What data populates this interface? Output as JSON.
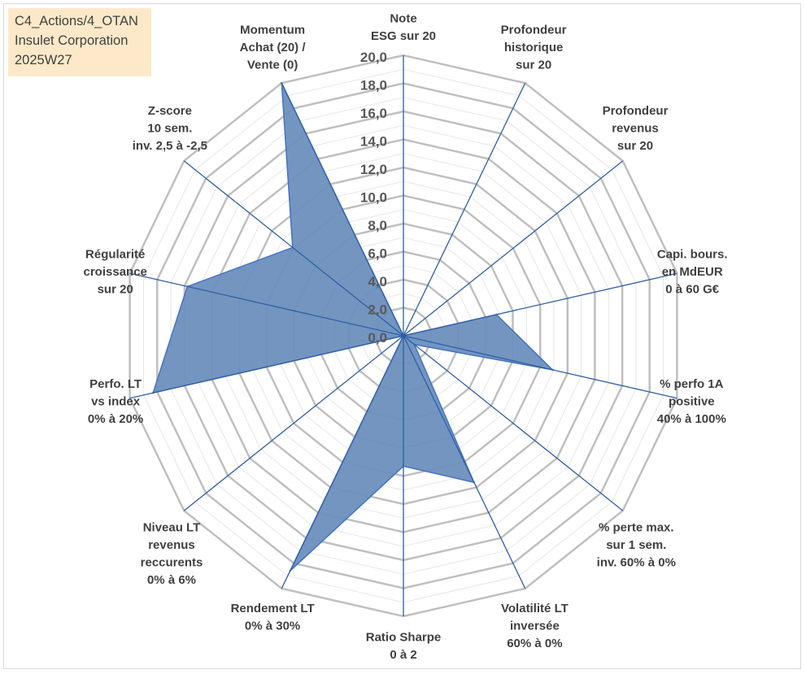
{
  "title_box": {
    "line1": "C4_Actions/4_OTAN",
    "line2": "Insulet Corporation",
    "line3": "2025W27"
  },
  "colors": {
    "grid_major": "#bfbfbf",
    "grid_minor": "#e6e6e6",
    "spoke": "#2f5fa5",
    "fill": "#6b8fbd",
    "stroke": "#4472c4",
    "title_bg": "#fde9c9"
  },
  "chart_data": {
    "type": "radar",
    "title": "",
    "rmin": 0,
    "rmax": 20,
    "major_step": 2,
    "minor_step": 1,
    "ticks": [
      "0,0",
      "2,0",
      "4,0",
      "6,0",
      "8,0",
      "10,0",
      "12,0",
      "14,0",
      "16,0",
      "18,0",
      "20,0"
    ],
    "legend": "none",
    "axes": [
      {
        "label": [
          "Note",
          "ESG sur 20"
        ]
      },
      {
        "label": [
          "Profondeur",
          "historique",
          "sur 20"
        ]
      },
      {
        "label": [
          "Profondeur",
          "revenus",
          "sur 20"
        ]
      },
      {
        "label": [
          "Capi. bours.",
          "en MdEUR",
          "0 à 60 G€"
        ]
      },
      {
        "label": [
          "% perfo 1A",
          "positive",
          "40% à 100%"
        ]
      },
      {
        "label": [
          "% perte max.",
          "sur 1 sem.",
          "inv. 60% à 0%"
        ]
      },
      {
        "label": [
          "Volatilité LT",
          "inversée",
          "60% à 0%"
        ]
      },
      {
        "label": [
          "Ratio Sharpe",
          "0 à 2"
        ]
      },
      {
        "label": [
          "Rendement LT",
          "0% à 30%"
        ]
      },
      {
        "label": [
          "Niveau LT",
          "revenus",
          "reccurents",
          "0% à 6%"
        ]
      },
      {
        "label": [
          "Perfo. LT",
          "vs index",
          "0% à 20%"
        ]
      },
      {
        "label": [
          "Régularité",
          "croissance",
          "sur 20"
        ]
      },
      {
        "label": [
          "Z-score",
          "10 sem.",
          "inv. 2,5 à -2,5"
        ]
      },
      {
        "label": [
          "Momentum",
          "Achat (20) /",
          "Vente (0)"
        ]
      }
    ],
    "series": [
      {
        "values": [
          0,
          0,
          0,
          6.8,
          10.9,
          1.0,
          11.6,
          9.3,
          18.6,
          0,
          18.3,
          15.8,
          10.1,
          20.0
        ]
      }
    ]
  }
}
